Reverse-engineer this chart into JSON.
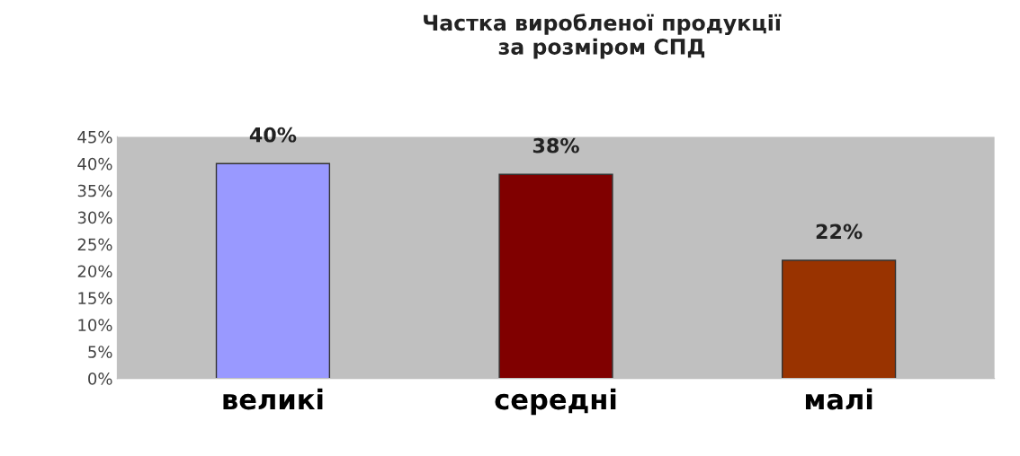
{
  "chart_data": {
    "type": "bar",
    "title": "Частка виробленої продукції\nза розміром СПД",
    "categories": [
      "великі",
      "середні",
      "малі"
    ],
    "values": [
      40,
      38,
      22
    ],
    "colors": [
      "#9999ff",
      "#800000",
      "#993300"
    ],
    "value_labels": [
      "40%",
      "38%",
      "22%"
    ],
    "ylim": [
      0,
      45
    ],
    "yticks": [
      {
        "value": 0,
        "label": "0%"
      },
      {
        "value": 5,
        "label": "5%"
      },
      {
        "value": 10,
        "label": "10%"
      },
      {
        "value": 15,
        "label": "15%"
      },
      {
        "value": 20,
        "label": "20%"
      },
      {
        "value": 25,
        "label": "25%"
      },
      {
        "value": 30,
        "label": "30%"
      },
      {
        "value": 35,
        "label": "35%"
      },
      {
        "value": 40,
        "label": "40%"
      },
      {
        "value": 45,
        "label": "45%"
      }
    ],
    "grid": false,
    "legend": false
  }
}
